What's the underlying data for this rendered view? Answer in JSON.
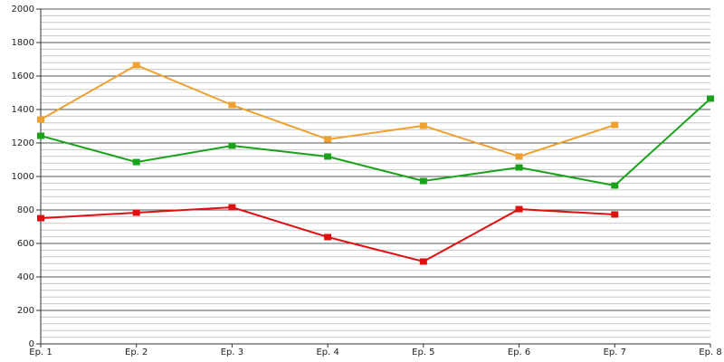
{
  "chart_data": {
    "type": "line",
    "categories": [
      "Ep. 1",
      "Ep. 2",
      "Ep. 3",
      "Ep. 4",
      "Ep. 5",
      "Ep. 6",
      "Ep. 7",
      "Ep. 8"
    ],
    "series": [
      {
        "color": "#f0a030",
        "values": [
          1340,
          1665,
          1427,
          1222,
          1303,
          1119,
          1308,
          null
        ]
      },
      {
        "color": "#1aa31a",
        "values": [
          1243,
          1086,
          1184,
          1119,
          973,
          1054,
          946,
          1465
        ]
      },
      {
        "color": "#e01010",
        "values": [
          751,
          784,
          816,
          638,
          492,
          805,
          773,
          null
        ]
      }
    ],
    "ylim": [
      0,
      2000
    ],
    "yticks": [
      0,
      200,
      400,
      600,
      800,
      1000,
      1200,
      1400,
      1600,
      1800,
      2000
    ],
    "yminorticks": [
      40,
      80,
      120,
      160,
      240,
      280,
      320,
      360,
      440,
      480,
      520,
      560,
      640,
      680,
      720,
      760,
      840,
      880,
      920,
      960,
      1040,
      1080,
      1120,
      1160,
      1240,
      1280,
      1320,
      1360,
      1440,
      1480,
      1520,
      1560,
      1640,
      1680,
      1720,
      1760,
      1840,
      1880,
      1920,
      1960
    ],
    "grid": true
  }
}
